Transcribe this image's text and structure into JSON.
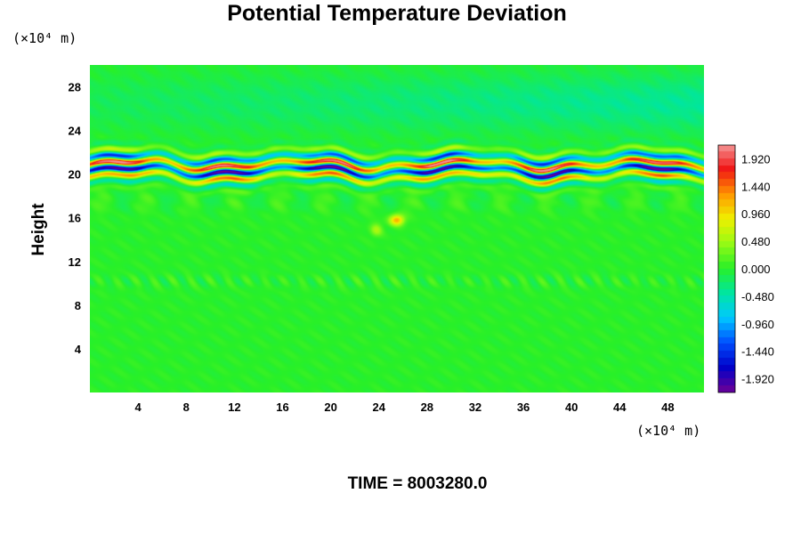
{
  "chart_data": {
    "type": "heatmap",
    "title": "Potential Temperature Deviation",
    "ylabel": "Height",
    "xunit": "(×10⁴ m)",
    "yunit": "(×10⁴ m)",
    "xlim": [
      0,
      51
    ],
    "ylim": [
      0,
      30
    ],
    "x_ticks": [
      4,
      8,
      12,
      16,
      20,
      24,
      28,
      32,
      36,
      40,
      44,
      48
    ],
    "y_ticks": [
      4,
      8,
      12,
      16,
      20,
      24,
      28
    ],
    "colorbar": {
      "min": -2.16,
      "max": 2.16,
      "labels": [
        "1.920",
        "1.440",
        "0.960",
        "0.480",
        "0.000",
        "-0.480",
        "-0.960",
        "-1.440",
        "-1.920"
      ],
      "label_values": [
        1.92,
        1.44,
        0.96,
        0.48,
        0.0,
        -0.48,
        -0.96,
        -1.44,
        -1.92
      ]
    },
    "features": [
      {
        "description_value": "strong positive/negative oscillating band",
        "y_center": 20.6,
        "amplitude": 2.0
      },
      {
        "description_value": "warm anomaly",
        "x": 25.5,
        "y": 15.8,
        "amplitude": 1.2
      },
      {
        "description_value": "cool region upper right",
        "y_center": 26.5,
        "amplitude": -0.4
      }
    ]
  },
  "footer": {
    "time_label": "TIME = 8003280.0"
  }
}
